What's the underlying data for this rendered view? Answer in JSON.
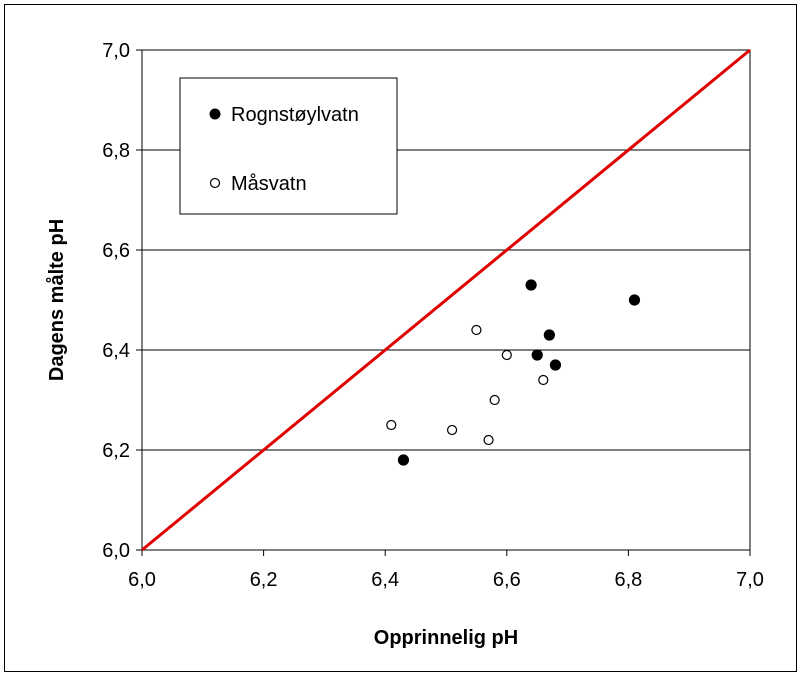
{
  "chart_data": {
    "type": "scatter",
    "title": "",
    "xlabel": "Opprinnelig pH",
    "ylabel": "Dagens målte pH",
    "xlim": [
      6.0,
      7.0
    ],
    "ylim": [
      6.0,
      7.0
    ],
    "x_ticks": [
      "6,0",
      "6,2",
      "6,4",
      "6,6",
      "6,8",
      "7,0"
    ],
    "y_ticks": [
      "6,0",
      "6,2",
      "6,4",
      "6,6",
      "6,8",
      "7,0"
    ],
    "grid": "horizontal",
    "legend_position": "top-left",
    "reference_line": {
      "from": [
        6.0,
        6.0
      ],
      "to": [
        7.0,
        7.0
      ],
      "color": "#e00000"
    },
    "series": [
      {
        "name": "Rognstøylvatn",
        "marker": "filled-circle",
        "color": "#000000",
        "points": [
          [
            6.43,
            6.18
          ],
          [
            6.64,
            6.53
          ],
          [
            6.65,
            6.39
          ],
          [
            6.67,
            6.43
          ],
          [
            6.68,
            6.37
          ],
          [
            6.81,
            6.5
          ]
        ]
      },
      {
        "name": "Måsvatn",
        "marker": "open-circle",
        "color": "#000000",
        "points": [
          [
            6.41,
            6.25
          ],
          [
            6.51,
            6.24
          ],
          [
            6.55,
            6.44
          ],
          [
            6.57,
            6.22
          ],
          [
            6.58,
            6.3
          ],
          [
            6.6,
            6.39
          ],
          [
            6.66,
            6.34
          ]
        ]
      }
    ]
  }
}
